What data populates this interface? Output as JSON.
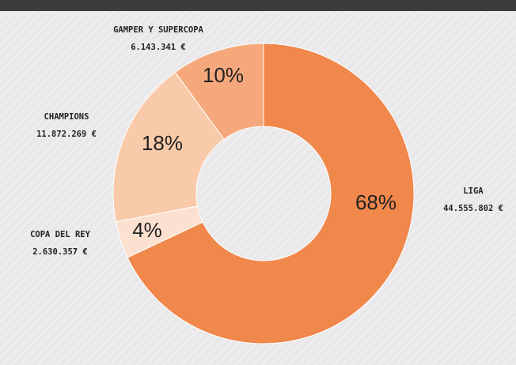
{
  "chart_data": {
    "type": "donut",
    "categories": [
      "LIGA",
      "COPA DEL REY",
      "CHAMPIONS",
      "GAMPER Y SUPERCOPA"
    ],
    "values": [
      68,
      4,
      18,
      10
    ],
    "value_labels": [
      "68%",
      "4%",
      "18%",
      "10%"
    ],
    "amounts": [
      "44.555.802 €",
      "2.630.357 €",
      "11.872.269 €",
      "6.143.341 €"
    ],
    "colors": [
      "#f0874b",
      "#fce1d0",
      "#f9caa9",
      "#f5a87b"
    ]
  }
}
